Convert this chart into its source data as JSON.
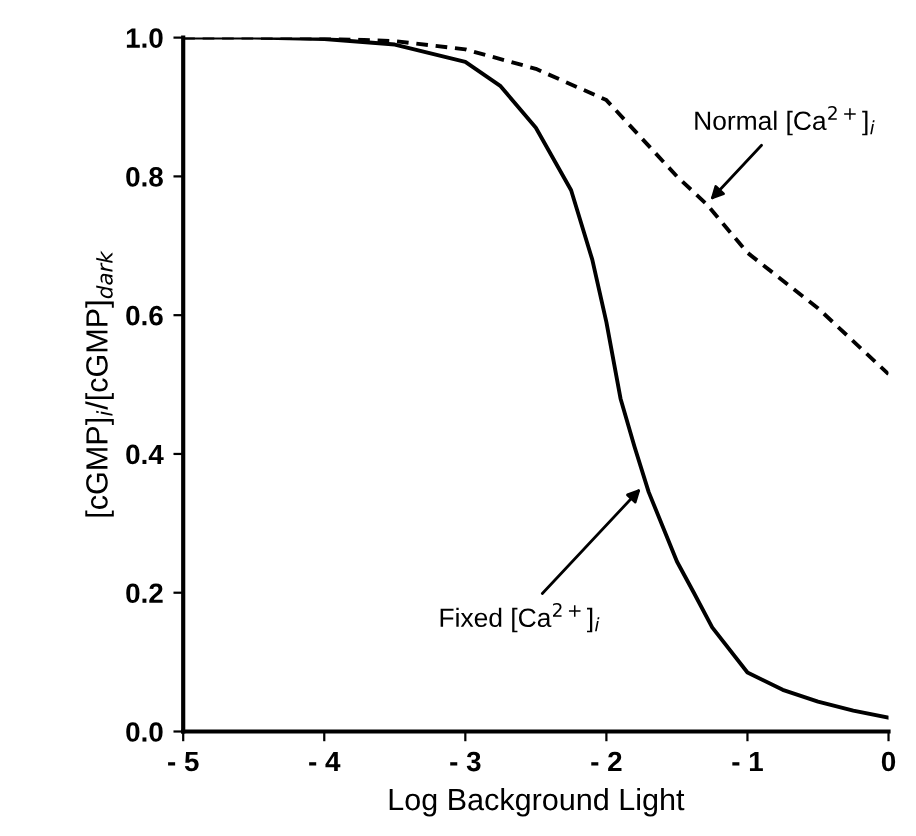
{
  "chart_data": {
    "type": "line",
    "xlabel": "Log Background Light",
    "ylabel": "[cGMP]$_{i}$/[cGMP]$_{dark}$",
    "xlim": [
      -5,
      0
    ],
    "ylim": [
      0,
      1.0
    ],
    "xticks": [
      {
        "value": -5,
        "label": "- 5"
      },
      {
        "value": -4,
        "label": "- 4"
      },
      {
        "value": -3,
        "label": "- 3"
      },
      {
        "value": -2,
        "label": "- 2"
      },
      {
        "value": -1,
        "label": "- 1"
      },
      0
    ],
    "yticks": [
      {
        "value": 0,
        "label": "0.0"
      },
      {
        "value": 0.2,
        "label": "0.2"
      },
      {
        "value": 0.4,
        "label": "0.4"
      },
      {
        "value": 0.6,
        "label": "0.6"
      },
      {
        "value": 0.8,
        "label": "0.8"
      },
      {
        "value": 1.0,
        "label": "1.0"
      }
    ],
    "grid": false,
    "marker": "none",
    "series": [
      {
        "color": "#000000",
        "line_style": "dashed",
        "x": [
          -5,
          -4.5,
          -4,
          -3.5,
          -3,
          -2.5,
          -2,
          -1.5,
          -1.29,
          -1,
          -0.5,
          0
        ],
        "values": [
          1.0,
          1.0,
          0.999,
          0.995,
          0.983,
          0.955,
          0.91,
          0.8,
          0.76,
          0.69,
          0.61,
          0.515
        ]
      },
      {
        "color": "#000000",
        "line_style": "solid",
        "x": [
          -5,
          -4.5,
          -4,
          -3.5,
          -3,
          -2.75,
          -2.5,
          -2.25,
          -2.1,
          -2,
          -1.9,
          -1.8,
          -1.7,
          -1.5,
          -1.38,
          -1.25,
          -1,
          -0.75,
          -0.5,
          -0.25,
          0
        ],
        "values": [
          1.0,
          1.0,
          0.998,
          0.99,
          0.965,
          0.93,
          0.87,
          0.78,
          0.68,
          0.59,
          0.48,
          0.41,
          0.345,
          0.245,
          0.2,
          0.15,
          0.085,
          0.06,
          0.043,
          0.03,
          0.02
        ]
      }
    ],
    "annotations": [
      {
        "text": "Normal [Ca$^{2+}$]$_{i}$",
        "x": -1.29,
        "y": 0.76
      },
      {
        "text": "Fixed [Ca$^{2+}$]$_{i}$",
        "x": -1.73,
        "y": 0.356
      }
    ]
  }
}
